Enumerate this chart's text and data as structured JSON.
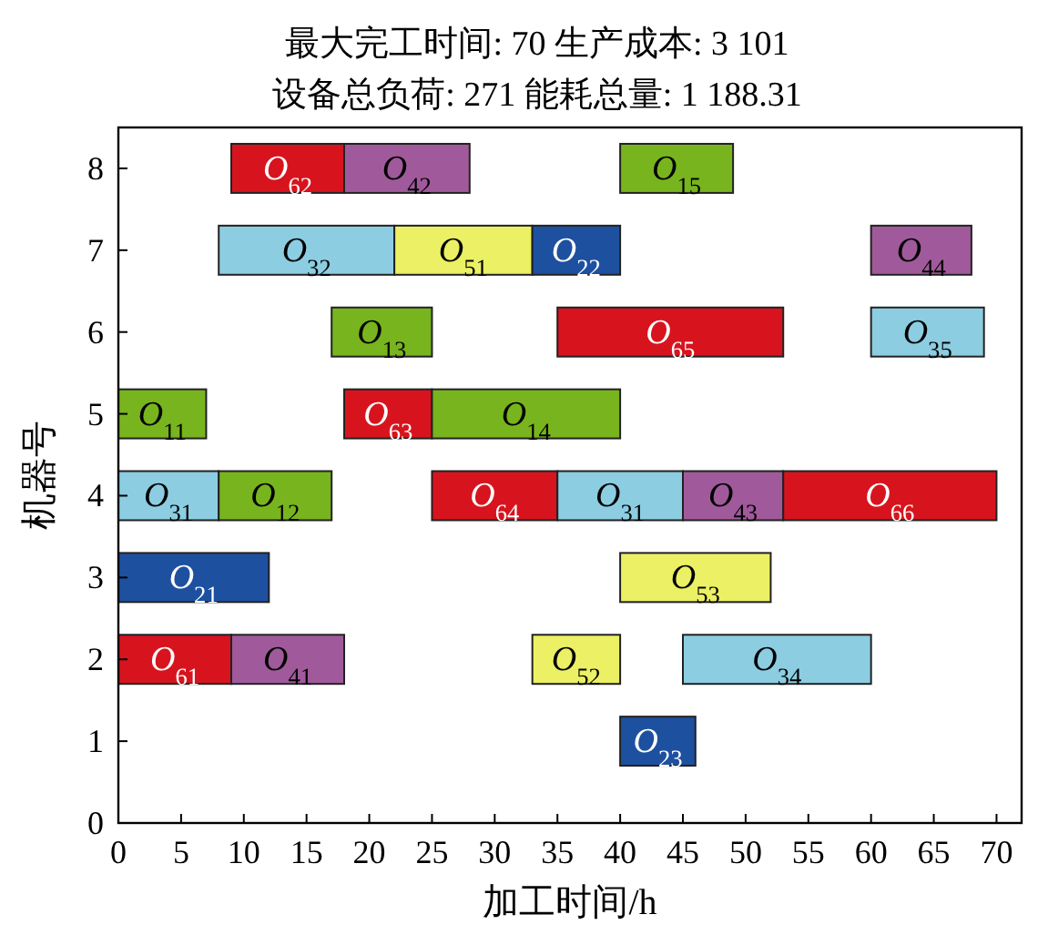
{
  "chart_data": {
    "type": "bar",
    "orientation": "horizontal",
    "title": "最大完工时间: 70 生产成本: 3 101",
    "subtitle": "设备总负荷: 271 能耗总量: 1 188.31",
    "xlabel": "加工时间/h",
    "ylabel": "机器号",
    "xlim": [
      0,
      72
    ],
    "xticks": [
      0,
      5,
      10,
      15,
      20,
      25,
      30,
      35,
      40,
      45,
      50,
      55,
      60,
      65,
      70
    ],
    "ylim": [
      0,
      8.5
    ],
    "yticks": [
      0,
      1,
      2,
      3,
      4,
      5,
      6,
      7,
      8
    ],
    "series": [
      {
        "name": "O$_{62}$",
        "color": "#d7141e",
        "x": [
          8
        ],
        "base": [
          9
        ],
        "values": [
          9
        ]
      },
      {
        "name": "O$_{42}$",
        "color": "#a05a9b",
        "x": [
          8
        ],
        "base": [
          18
        ],
        "values": [
          10
        ]
      },
      {
        "name": "O$_{15}$",
        "color": "#78b41e",
        "x": [
          8
        ],
        "base": [
          40
        ],
        "values": [
          9
        ]
      },
      {
        "name": "O$_{32}$",
        "color": "#8ccde1",
        "x": [
          7
        ],
        "base": [
          8
        ],
        "values": [
          14
        ]
      },
      {
        "name": "O$_{51}$",
        "color": "#ebf064",
        "x": [
          7
        ],
        "base": [
          22
        ],
        "values": [
          11
        ]
      },
      {
        "name": "O$_{22}$",
        "color": "#1e50a0",
        "x": [
          7
        ],
        "base": [
          33
        ],
        "values": [
          7
        ]
      },
      {
        "name": "O$_{44}$",
        "color": "#a05a9b",
        "x": [
          7
        ],
        "base": [
          60
        ],
        "values": [
          8
        ]
      },
      {
        "name": "O$_{13}$",
        "color": "#78b41e",
        "x": [
          6
        ],
        "base": [
          17
        ],
        "values": [
          8
        ]
      },
      {
        "name": "O$_{65}$",
        "color": "#d7141e",
        "x": [
          6
        ],
        "base": [
          35
        ],
        "values": [
          18
        ]
      },
      {
        "name": "O$_{35}$",
        "color": "#8ccde1",
        "x": [
          6
        ],
        "base": [
          60
        ],
        "values": [
          9
        ]
      },
      {
        "name": "O$_{11}$",
        "color": "#78b41e",
        "x": [
          5
        ],
        "base": [
          0
        ],
        "values": [
          7
        ]
      },
      {
        "name": "O$_{63}$",
        "color": "#d7141e",
        "x": [
          5
        ],
        "base": [
          18
        ],
        "values": [
          7
        ]
      },
      {
        "name": "O$_{14}$",
        "color": "#78b41e",
        "x": [
          5
        ],
        "base": [
          25
        ],
        "values": [
          15
        ]
      },
      {
        "name": "O$_{31}$",
        "color": "#8ccde1",
        "x": [
          4
        ],
        "base": [
          0
        ],
        "values": [
          8
        ]
      },
      {
        "name": "O$_{12}$",
        "color": "#78b41e",
        "x": [
          4
        ],
        "base": [
          8
        ],
        "values": [
          9
        ]
      },
      {
        "name": "O$_{64}$",
        "color": "#d7141e",
        "x": [
          4
        ],
        "base": [
          25
        ],
        "values": [
          10
        ]
      },
      {
        "name": "O$_{31}$",
        "color": "#8ccde1",
        "x": [
          4
        ],
        "base": [
          35
        ],
        "values": [
          10
        ]
      },
      {
        "name": "O$_{43}$",
        "color": "#a05a9b",
        "x": [
          4
        ],
        "base": [
          45
        ],
        "values": [
          8
        ]
      },
      {
        "name": "O$_{66}$",
        "color": "#d7141e",
        "x": [
          4
        ],
        "base": [
          53
        ],
        "values": [
          17
        ]
      },
      {
        "name": "O$_{21}$",
        "color": "#1e50a0",
        "x": [
          3
        ],
        "base": [
          0
        ],
        "values": [
          12
        ]
      },
      {
        "name": "O$_{53}$",
        "color": "#ebf064",
        "x": [
          3
        ],
        "base": [
          40
        ],
        "values": [
          12
        ]
      },
      {
        "name": "O$_{61}$",
        "color": "#d7141e",
        "x": [
          2
        ],
        "base": [
          0
        ],
        "values": [
          9
        ]
      },
      {
        "name": "O$_{41}$",
        "color": "#a05a9b",
        "x": [
          2
        ],
        "base": [
          9
        ],
        "values": [
          9
        ]
      },
      {
        "name": "O$_{52}$",
        "color": "#ebf064",
        "x": [
          2
        ],
        "base": [
          33
        ],
        "values": [
          7
        ]
      },
      {
        "name": "O$_{34}$",
        "color": "#8ccde1",
        "x": [
          2
        ],
        "base": [
          45
        ],
        "values": [
          15
        ]
      },
      {
        "name": "O$_{23}$",
        "color": "#1e50a0",
        "x": [
          1
        ],
        "base": [
          40
        ],
        "values": [
          6
        ]
      }
    ]
  }
}
